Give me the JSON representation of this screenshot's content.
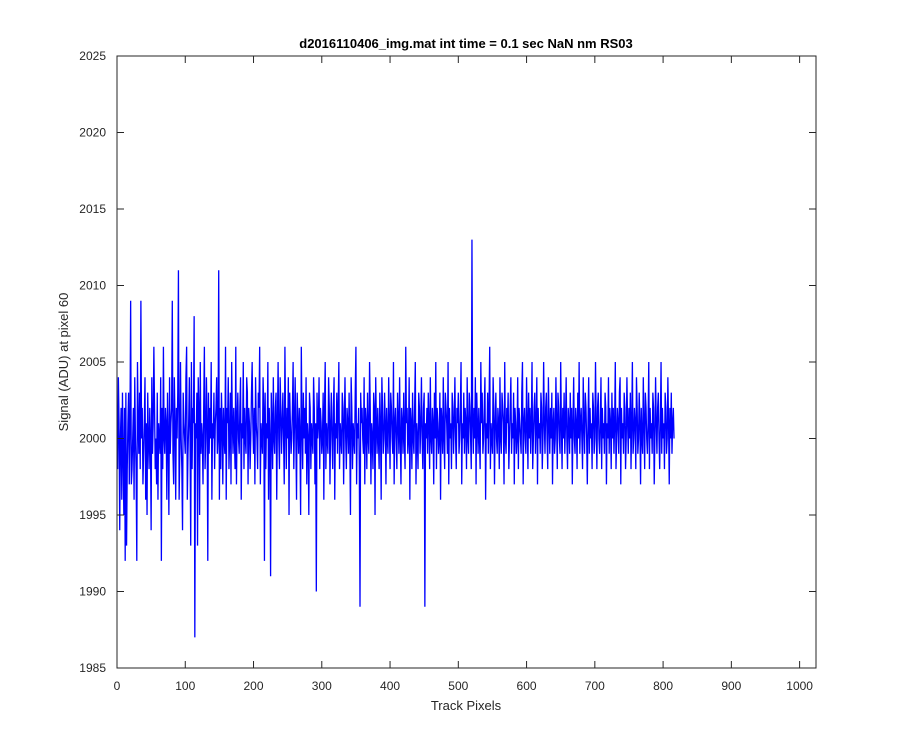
{
  "chart_data": {
    "type": "line",
    "title": "d2016110406_img.mat int time = 0.1 sec  NaN nm RS03",
    "xlabel": "Track Pixels",
    "ylabel": "Signal (ADU) at pixel 60",
    "xlim": [
      0,
      1024
    ],
    "ylim": [
      1985,
      2025
    ],
    "xticks": [
      0,
      100,
      200,
      300,
      400,
      500,
      600,
      700,
      800,
      900,
      1000
    ],
    "yticks": [
      1985,
      1990,
      1995,
      2000,
      2005,
      2010,
      2015,
      2020,
      2025
    ],
    "xtick_labels": [
      "0",
      "100",
      "200",
      "300",
      "400",
      "500",
      "600",
      "700",
      "800",
      "900",
      "1000"
    ],
    "ytick_labels": [
      "1985",
      "1990",
      "1995",
      "2000",
      "2005",
      "2010",
      "2015",
      "2020",
      "2025"
    ],
    "grid": false,
    "legend": "none",
    "line_color": "#0000ff",
    "series": [
      {
        "x_start": 1,
        "x_step": 1,
        "values": [
          1998,
          2004,
          2001,
          1994,
          2000,
          2002,
          1996,
          2003,
          1999,
          1995,
          2002,
          1992,
          2003,
          1993,
          1998,
          2001,
          2003,
          1997,
          2001,
          2009,
          1997,
          1998,
          2000,
          2002,
          1996,
          2004,
          2000,
          1998,
          1992,
          2005,
          2001,
          1999,
          2003,
          1998,
          2009,
          2000,
          2002,
          1997,
          1999,
          2001,
          2004,
          1996,
          2001,
          1995,
          2003,
          2000,
          1998,
          2002,
          2000,
          1994,
          2004,
          1999,
          2001,
          2006,
          2002,
          1998,
          2000,
          1997,
          2003,
          1996,
          2001,
          2000,
          1999,
          2004,
          1992,
          2002,
          1998,
          2006,
          2000,
          1999,
          2002,
          2001,
          1996,
          2003,
          2000,
          1995,
          2004,
          1999,
          2001,
          2002,
          2009,
          1999,
          1997,
          2004,
          2001,
          1996,
          2002,
          2000,
          2003,
          2011,
          1996,
          1999,
          2005,
          2000,
          1998,
          1994,
          2003,
          2001,
          2000,
          1999,
          2004,
          2006,
          1996,
          1999,
          2001,
          2004,
          2000,
          1993,
          2005,
          1998,
          2002,
          2001,
          2008,
          1987,
          2001,
          2000,
          2003,
          1993,
          2004,
          2002,
          1995,
          2005,
          1999,
          2001,
          2000,
          1997,
          2002,
          2006,
          1998,
          2000,
          2004,
          2001,
          1992,
          2003,
          1999,
          2002,
          2000,
          2005,
          1996,
          2001,
          2000,
          2003,
          1998,
          2001,
          2002,
          2004,
          1999,
          2000,
          2011,
          1996,
          2002,
          1998,
          2003,
          2001,
          1997,
          2002,
          2000,
          1999,
          2006,
          1996,
          2002,
          2001,
          2004,
          1998,
          2000,
          2003,
          1997,
          2005,
          2001,
          1999,
          2002,
          2000,
          1998,
          2006,
          1997,
          2001,
          2003,
          2000,
          1999,
          2002,
          2004,
          1996,
          2001,
          2000,
          2005,
          1998,
          2002,
          2000,
          1999,
          2004,
          2003,
          1997,
          2002,
          2001,
          1998,
          2000,
          2003,
          2005,
          2001,
          1999,
          2002,
          1997,
          2004,
          2001,
          2000,
          1998,
          2003,
          2002,
          2006,
          1997,
          2001,
          2000,
          1999,
          2004,
          2002,
          1992,
          2003,
          1998,
          2001,
          2000,
          2005,
          1996,
          2002,
          2000,
          1991,
          2003,
          2001,
          1998,
          2004,
          2000,
          1999,
          2002,
          2003,
          1996,
          2001,
          2005,
          2000,
          1998,
          2004,
          2002,
          1999,
          2001,
          2003,
          2000,
          1997,
          2006,
          2001,
          1998,
          2002,
          2000,
          2004,
          1995,
          2003,
          2001,
          1999,
          2000,
          2002,
          2005,
          1998,
          2001,
          2004,
          2000,
          1996,
          2003,
          2001,
          1999,
          2002,
          2000,
          1995,
          2006,
          2001,
          1998,
          2003,
          2000,
          2002,
          1999,
          2004,
          1997,
          2001,
          2000,
          1995,
          2003,
          2002,
          1998,
          2001,
          2000,
          1999,
          2004,
          2002,
          1997,
          2001,
          1990,
          2003,
          2000,
          2001,
          2004,
          1998,
          2002,
          2001,
          1999,
          2000,
          2003,
          1996,
          2002,
          2005,
          1998,
          2001,
          2000,
          1999,
          2004,
          2002,
          1997,
          2001,
          2003,
          2000,
          1998,
          2002,
          2004,
          1996,
          2001,
          2000,
          2003,
          1999,
          2002,
          2005,
          1998,
          2001,
          2000,
          1999,
          2003,
          2002,
          1997,
          2001,
          2004,
          2000,
          1998,
          2002,
          2001,
          1999,
          2003,
          2000,
          1995,
          2004,
          2002,
          1998,
          2001,
          2000,
          1999,
          2003,
          2006,
          1997,
          2001,
          2000,
          2002,
          1998,
          1989,
          2003,
          2001,
          2002,
          2000,
          1999,
          2004,
          1997,
          2002,
          2001,
          1998,
          2003,
          2000,
          1999,
          2005,
          2002,
          1997,
          2001,
          2000,
          1998,
          2003,
          2002,
          1995,
          2004,
          2001,
          1999,
          2002,
          2000,
          1998,
          2003,
          2001,
          1996,
          2004,
          2002,
          1999,
          2000,
          2003,
          2001,
          1997,
          2002,
          2000,
          1999,
          2004,
          2001,
          1998,
          2003,
          2002,
          2000,
          1999,
          2005,
          1997,
          2001,
          2002,
          2000,
          1998,
          2003,
          2001,
          1999,
          2004,
          2000,
          1997,
          2002,
          2001,
          1999,
          2003,
          2000,
          1998,
          2006,
          2001,
          2002,
          1999,
          2000,
          2004,
          1996,
          2002,
          2001,
          1998,
          2003,
          2000,
          1999,
          2002,
          2005,
          1997,
          2001,
          2000,
          1998,
          2003,
          2002,
          1999,
          2001,
          2004,
          2000,
          1998,
          2002,
          2003,
          1989,
          2001,
          2000,
          2002,
          1999,
          2003,
          2001,
          1998,
          2004,
          2000,
          1999,
          2002,
          2001,
          1997,
          2003,
          2000,
          2005,
          1998,
          2002,
          2001,
          1999,
          2000,
          2003,
          1996,
          2002,
          2001,
          1999,
          2004,
          2000,
          1998,
          2003,
          2002,
          2001,
          1999,
          2005,
          1997,
          2002,
          2000,
          2001,
          1998,
          2003,
          2002,
          1999,
          2001,
          2004,
          2000,
          1998,
          2002,
          2001,
          2003,
          1999,
          2000,
          2002,
          2005,
          1997,
          2001,
          2000,
          2003,
          1999,
          2002,
          2001,
          1998,
          2004,
          2000,
          1999,
          2003,
          2002,
          2000,
          1998,
          2013,
          2001,
          1999,
          2002,
          2000,
          2004,
          1997,
          2003,
          2001,
          1999,
          2002,
          2000,
          1998,
          2005,
          2001,
          2003,
          1999,
          2000,
          2002,
          2004,
          1996,
          2001,
          2000,
          2003,
          1999,
          2002,
          2006,
          1998,
          2001,
          2000,
          1999,
          2004,
          2002,
          1997,
          2001,
          2003,
          2000,
          1999,
          2002,
          2001,
          1998,
          2004,
          2000,
          1999,
          2003,
          2002,
          2001,
          1997,
          2005,
          2000,
          1999,
          2002,
          2001,
          2003,
          1998,
          2000,
          2002,
          2004,
          1999,
          2001,
          2000,
          2003,
          1997,
          2002,
          2001,
          1999,
          2000,
          2004,
          1998,
          2002,
          2001,
          2000,
          1999,
          2003,
          2005,
          1997,
          2001,
          2002,
          2000,
          1999,
          2004,
          2001,
          1998,
          2003,
          2000,
          2002,
          1999,
          2001,
          2005,
          1998,
          2000,
          2002,
          2003,
          1999,
          2001,
          2004,
          1997,
          2002,
          2000,
          2001,
          1999,
          2003,
          2002,
          1998,
          2000,
          2005,
          2001,
          1999,
          2002,
          2003,
          2000,
          1998,
          2004,
          2001,
          1999,
          2002,
          2000,
          2003,
          1997,
          2001,
          2002,
          1999,
          2000,
          2004,
          2001,
          1998,
          2003,
          2002,
          2000,
          1999,
          2005,
          2001,
          1998,
          2002,
          2000,
          2003,
          1999,
          2001,
          2004,
          2000,
          1998,
          2002,
          2001,
          1999,
          2003,
          2000,
          2002,
          1997,
          2001,
          2004,
          2000,
          1999,
          2002,
          2001,
          1998,
          2003,
          2000,
          2005,
          1999,
          2001,
          2002,
          2000,
          1998,
          2004,
          2001,
          1999,
          2003,
          2002,
          2000,
          1997,
          2001,
          2004,
          1999,
          2002,
          2000,
          2001,
          1998,
          2003,
          2002,
          1999,
          2000,
          2005,
          2001,
          1998,
          2002,
          2003,
          2000,
          1999,
          2001,
          2004,
          1998,
          2002,
          2000,
          2001,
          1999,
          2003,
          2002,
          1997,
          2001,
          2000,
          2004,
          1999,
          2002,
          2001,
          1998,
          2003,
          2000,
          2002,
          1999,
          2001,
          2005,
          1998,
          2000,
          2002,
          2001,
          1999,
          2003,
          2004,
          1997,
          2002,
          2000,
          2001,
          1999,
          2003,
          2002,
          1998,
          2000,
          2004,
          2001,
          1999,
          2002,
          2000,
          2003,
          1998,
          2001,
          2005,
          1999,
          2000,
          2002,
          2001,
          1998,
          2004,
          2002,
          1999,
          2000,
          2003,
          2001,
          1997,
          2002,
          2000,
          1999,
          2004,
          2001,
          1998,
          2003,
          2002,
          2000,
          1999,
          2001,
          2005,
          1998,
          2002,
          2000,
          2001,
          1999,
          2003,
          2002,
          1997,
          2000,
          2004,
          2001,
          1999,
          2002,
          2003,
          2000,
          1998,
          2001,
          2005,
          1999,
          2002,
          2000,
          2001,
          1998,
          2003,
          2002,
          1999,
          2000,
          2004,
          2001,
          1997,
          2002,
          2000,
          2003,
          1999,
          2001,
          2002,
          2000
        ]
      }
    ]
  }
}
